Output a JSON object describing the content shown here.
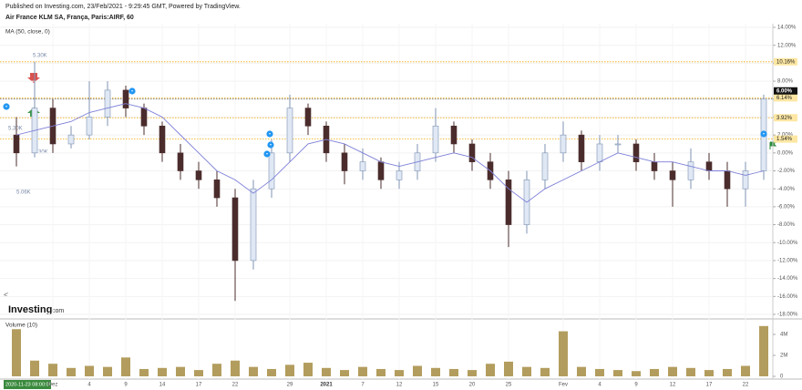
{
  "chart_data": {
    "type": "candlestick",
    "published": "Published on Investing.com, 23/Feb/2021 - 9:29:45 GMT, Powered by TradingView.",
    "title": "Air France KLM SA, França, Paris:AIRF, 60",
    "indicator": "MA (50, close, 0)",
    "volume_title": "Volume (10)",
    "crosshair_label": "2020-11-23 08:00:00",
    "logo": {
      "name": "Investing",
      "suffix": ".com"
    },
    "annotations": [
      "5.30K",
      "5.30K",
      "5.30K",
      "5.06K"
    ],
    "categories": [
      null,
      null,
      "Dez",
      null,
      "4",
      null,
      "9",
      null,
      "14",
      null,
      "17",
      null,
      "22",
      null,
      null,
      "29",
      null,
      "2021",
      null,
      "7",
      null,
      "12",
      null,
      "15",
      null,
      "20",
      null,
      "25",
      null,
      null,
      "Fev",
      null,
      "4",
      null,
      "9",
      null,
      "12",
      null,
      "17",
      null,
      "22",
      null
    ],
    "open": [
      2,
      0,
      5,
      1,
      2,
      4,
      7,
      5,
      3,
      0,
      -2,
      -3,
      -5,
      -12,
      -4,
      0,
      5,
      3,
      0,
      -2,
      -1,
      -3,
      -2,
      0,
      3,
      1,
      -1,
      -3,
      -8,
      -3,
      0,
      2,
      -1,
      1,
      1,
      -1,
      -2,
      -3,
      -1,
      -2,
      -4,
      -2
    ],
    "high": [
      4,
      10.16,
      6,
      3,
      8,
      8,
      7.5,
      5.5,
      3.5,
      1,
      -1,
      -2,
      -4,
      -3,
      1.5,
      6.5,
      5.5,
      3.5,
      1,
      0.5,
      -0.5,
      -1,
      1,
      5,
      3.5,
      1.5,
      0,
      -2,
      -2,
      1,
      3.5,
      2.5,
      2,
      2,
      1.5,
      0,
      -1,
      0.5,
      0,
      -1,
      -1,
      6.5
    ],
    "low": [
      -1.5,
      -0.5,
      0,
      0.5,
      1.5,
      3,
      4,
      2,
      -1,
      -3,
      -4,
      -6,
      -16.5,
      -13,
      -5,
      -1,
      2,
      -1,
      -3.5,
      -3,
      -4,
      -4,
      -3,
      -1,
      0,
      -2,
      -4,
      -10.5,
      -9,
      -4,
      -1,
      -2,
      -2,
      0,
      -2,
      -3,
      -6,
      -4,
      -3,
      -6,
      -6,
      -3
    ],
    "close": [
      0,
      5,
      1,
      2,
      4,
      7,
      5,
      3,
      0,
      -2,
      -3,
      -5,
      -12,
      -4,
      0,
      5,
      3,
      0,
      -2,
      -1,
      -3,
      -2,
      0,
      3,
      1,
      -1,
      -3,
      -8,
      -3,
      0,
      2,
      -1,
      1,
      1,
      -1,
      -2,
      -3,
      -1,
      -2,
      -4,
      -2,
      6
    ],
    "ma": [
      2,
      2.5,
      3,
      3.5,
      4.5,
      5,
      5.5,
      5,
      4,
      2,
      0,
      -2,
      -3,
      -4.5,
      -3,
      -1,
      1,
      1.5,
      1,
      0,
      -1,
      -1.5,
      -1,
      -0.5,
      0,
      -0.5,
      -2,
      -4,
      -5.5,
      -4,
      -3,
      -2,
      -1,
      0,
      -0.5,
      -1,
      -1,
      -1.5,
      -2,
      -2,
      -2.5,
      -2
    ],
    "volume": [
      4500000,
      1500000,
      1200000,
      800000,
      1000000,
      900000,
      1800000,
      700000,
      800000,
      900000,
      600000,
      1200000,
      1500000,
      900000,
      700000,
      1100000,
      1300000,
      800000,
      600000,
      900000,
      700000,
      600000,
      1000000,
      800000,
      700000,
      600000,
      1200000,
      1400000,
      900000,
      800000,
      4300000,
      900000,
      700000,
      600000,
      500000,
      700000,
      900000,
      800000,
      600000,
      700000,
      1000000,
      4800000
    ],
    "up_color": "#dfe8f4",
    "up_stroke": "#7f93b3",
    "down_color": "#4b2c2c",
    "ma_color": "#7d7fd8",
    "volume_color": "#b39d5e",
    "level_color": "#f2a900",
    "ylim": [
      -18,
      14
    ],
    "yticks": [
      {
        "value": 14,
        "label": "14.00%"
      },
      {
        "value": 12,
        "label": "12.00%"
      },
      {
        "value": 10,
        "label": "10.00%"
      },
      {
        "value": 8,
        "label": "8.00%"
      },
      {
        "value": 6,
        "label": "6.00%"
      },
      {
        "value": 4,
        "label": "4.00%"
      },
      {
        "value": 2,
        "label": "2.00%"
      },
      {
        "value": 0,
        "label": "0.00%"
      },
      {
        "value": -2,
        "label": "-2.00%"
      },
      {
        "value": -4,
        "label": "-4.00%"
      },
      {
        "value": -6,
        "label": "-6.00%"
      },
      {
        "value": -8,
        "label": "-8.00%"
      },
      {
        "value": -10,
        "label": "-10.00%"
      },
      {
        "value": -12,
        "label": "-12.00%"
      },
      {
        "value": -14,
        "label": "-14.00%"
      },
      {
        "value": -16,
        "label": "-16.00%"
      },
      {
        "value": -18,
        "label": "-18.00%"
      }
    ],
    "levels": [
      {
        "value": 10.16,
        "label": "10.16%"
      },
      {
        "value": 6.14,
        "label": "6.14%"
      },
      {
        "value": 3.92,
        "label": "3.92%"
      },
      {
        "value": 1.54,
        "label": "1.54%"
      }
    ],
    "last_price": {
      "value": 6,
      "label": "6.00%"
    },
    "volume_ylim": [
      0,
      5000000
    ],
    "volume_ticks": [
      {
        "value": 4000000,
        "label": "4M"
      },
      {
        "value": 2000000,
        "label": "2M"
      },
      0
    ],
    "grid": true
  }
}
